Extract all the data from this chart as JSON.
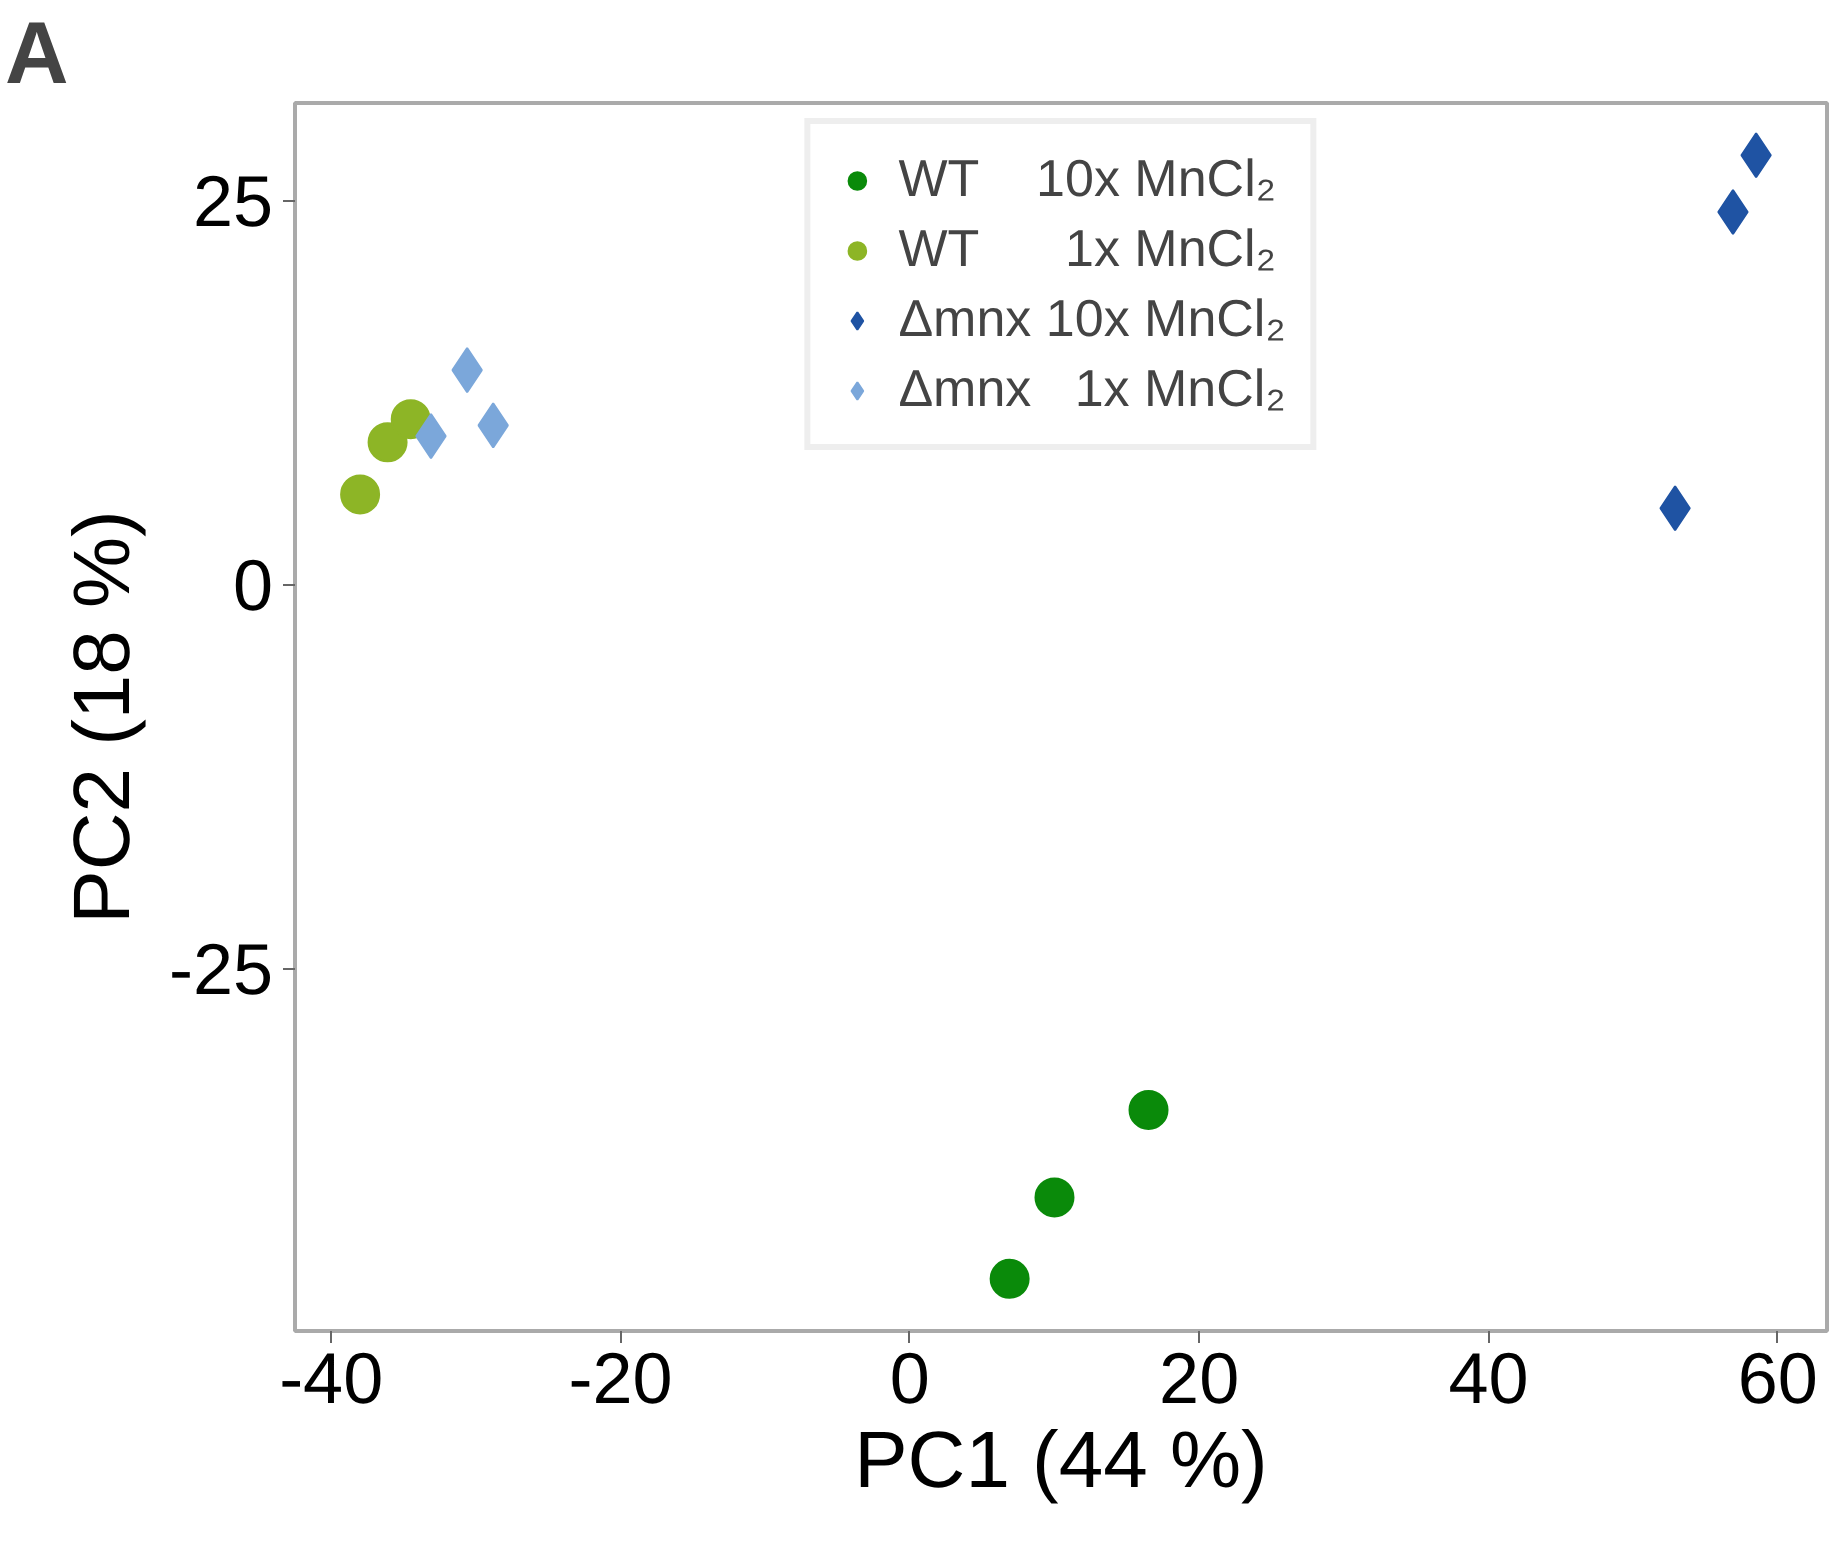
{
  "chart_data": {
    "type": "scatter",
    "xlabel": "PC1 (44 %)",
    "ylabel": "PC2 (18 %)",
    "annotations": [
      "A"
    ],
    "xlim": [
      -42.5,
      63.4
    ],
    "ylim": [
      -48.6,
      31.4
    ],
    "xticks": [
      -40,
      -20,
      0,
      20,
      40,
      60
    ],
    "yticks": [
      -25,
      0,
      25
    ],
    "grid": false,
    "legend": "top",
    "series": [
      {
        "name": "WT    10x MnCl₂",
        "color": "#0a8a0a",
        "marker": "circle",
        "x": [
          16.5,
          10.0,
          6.9
        ],
        "values": [
          -34.2,
          -39.9,
          -45.2
        ]
      },
      {
        "name": "WT      1x MnCl₂",
        "color": "#8db526",
        "marker": "circle",
        "x": [
          -38.0,
          -36.1,
          -34.5
        ],
        "values": [
          5.9,
          9.3,
          10.8
        ]
      },
      {
        "name": "Δmnx 10x MnCl₂",
        "color": "#1f53a3",
        "marker": "diamond",
        "x": [
          52.9,
          56.9,
          58.5
        ],
        "values": [
          5.0,
          24.3,
          28.0
        ]
      },
      {
        "name": "Δmnx   1x MnCl₂",
        "color": "#7ba7da",
        "marker": "diamond",
        "x": [
          -30.6,
          -33.1,
          -28.8
        ],
        "values": [
          14.0,
          9.7,
          10.4
        ]
      }
    ]
  }
}
